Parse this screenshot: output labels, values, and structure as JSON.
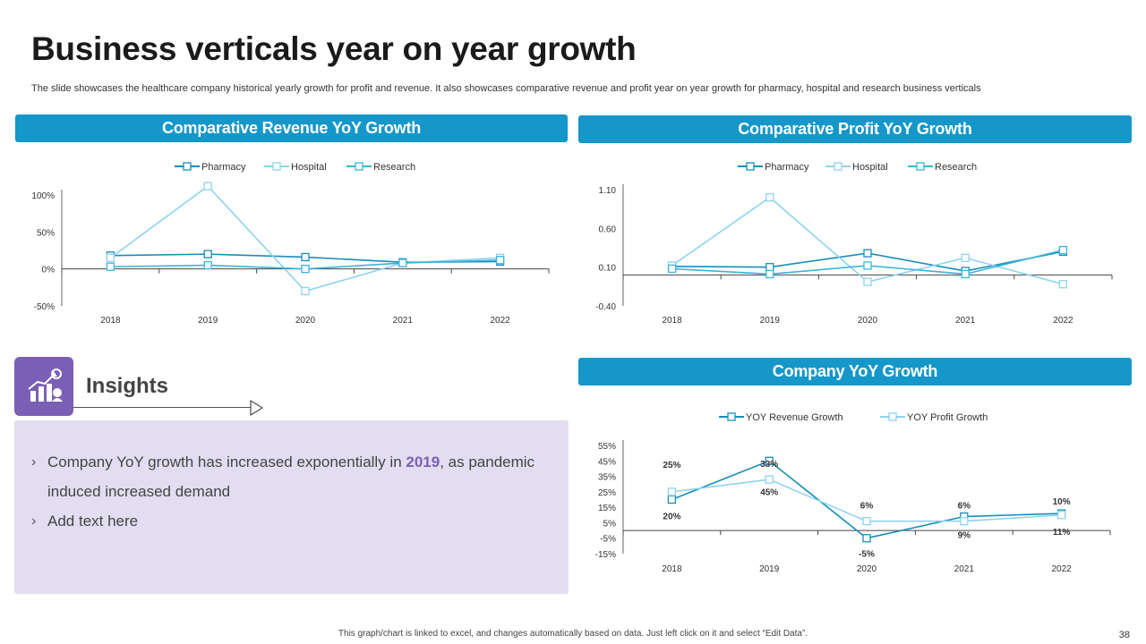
{
  "page": {
    "title": "Business verticals year on year growth",
    "subtitle": "The slide showcases the healthcare company historical yearly growth for  profit and revenue. It also showcases comparative revenue and profit year on year growth for pharmacy, hospital and research business verticals",
    "footer": "This graph/chart is linked to excel, and changes automatically based on data. Just left click on it and select “Edit Data”.",
    "page_number": "38"
  },
  "colors": {
    "header": "#1597c9",
    "pharmacy": "#1a8db8",
    "hospital": "#8fd3ee",
    "research": "#3ab4dc",
    "accent": "#7b5fb5",
    "insight_bg": "#e2ddf0"
  },
  "headers": {
    "revenue": "Comparative Revenue YoY Growth",
    "profit": "Comparative Profit YoY Growth",
    "company": "Company YoY Growth"
  },
  "insights": {
    "title": "Insights",
    "icon": "growth-chart-icon",
    "bullet1_before": "Company YoY growth has increased exponentially in ",
    "bullet1_highlight": "2019",
    "bullet1_after": ", as pandemic induced increased demand",
    "bullet2": "Add text here"
  },
  "chart_data": [
    {
      "type": "line",
      "title": "Comparative Revenue YoY Growth",
      "categories": [
        "2018",
        "2019",
        "2020",
        "2021",
        "2022"
      ],
      "y_ticks": [
        "-50%",
        "0%",
        "50%",
        "100%"
      ],
      "ylim": [
        -50,
        100
      ],
      "series": [
        {
          "name": "Pharmacy",
          "values": [
            18,
            20,
            16,
            9,
            10
          ]
        },
        {
          "name": "Hospital",
          "values": [
            15,
            112,
            -30,
            8,
            15
          ]
        },
        {
          "name": "Research",
          "values": [
            3,
            5,
            0,
            8,
            12
          ]
        }
      ],
      "legend": "top"
    },
    {
      "type": "line",
      "title": "Comparative Profit YoY Growth",
      "categories": [
        "2018",
        "2019",
        "2020",
        "2021",
        "2022"
      ],
      "y_ticks": [
        "-0.40",
        "0.10",
        "0.60",
        "1.10"
      ],
      "ylim": [
        -0.4,
        1.1
      ],
      "series": [
        {
          "name": "Pharmacy",
          "values": [
            0.11,
            0.1,
            0.28,
            0.05,
            0.3
          ]
        },
        {
          "name": "Hospital",
          "values": [
            0.12,
            1.0,
            -0.09,
            0.22,
            -0.12
          ]
        },
        {
          "name": "Research",
          "values": [
            0.08,
            0.01,
            0.12,
            0.01,
            0.32
          ]
        }
      ],
      "legend": "top"
    },
    {
      "type": "line",
      "title": "Company YoY Growth",
      "categories": [
        "2018",
        "2019",
        "2020",
        "2021",
        "2022"
      ],
      "y_ticks": [
        "-15%",
        "-5%",
        "5%",
        "15%",
        "25%",
        "35%",
        "45%",
        "55%"
      ],
      "ylim": [
        -15,
        55
      ],
      "series": [
        {
          "name": "YOY Revenue Growth",
          "values": [
            20,
            45,
            -5,
            9,
            11
          ],
          "labels": [
            "20%",
            "45%",
            "-5%",
            "9%",
            "11%"
          ]
        },
        {
          "name": "YOY Profit Growth",
          "values": [
            25,
            33,
            6,
            6,
            10
          ],
          "labels": [
            "25%",
            "33%",
            "6%",
            "6%",
            "10%"
          ]
        }
      ],
      "legend": "top"
    }
  ]
}
